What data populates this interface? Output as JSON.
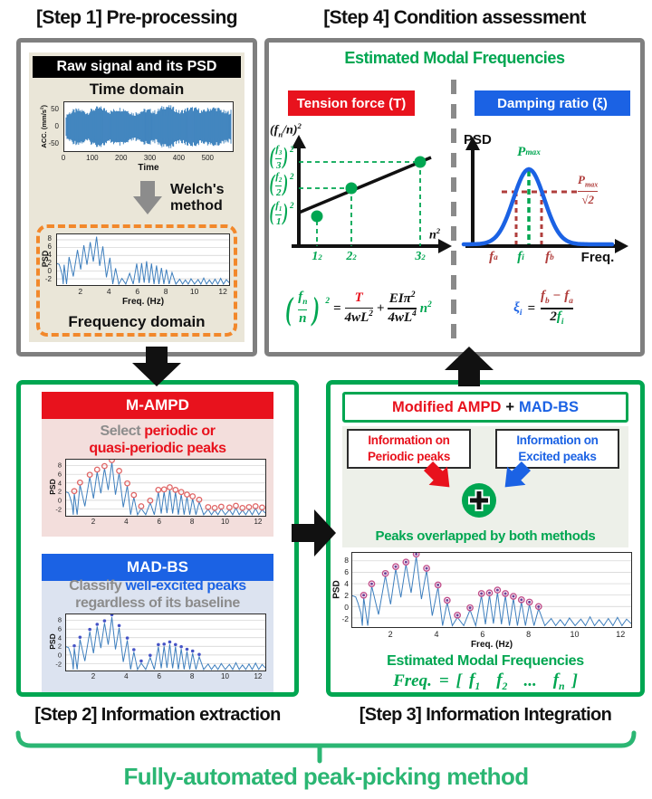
{
  "titles": {
    "step1": "[Step 1] Pre-processing",
    "step2": "[Step 2] Information extraction",
    "step3": "[Step 3] Information Integration",
    "step4": "[Step 4] Condition assessment"
  },
  "footer": "Fully-automated peak-picking method",
  "step1": {
    "raw_header": "Raw signal and its PSD",
    "time_domain": "Time domain",
    "time_plot": {
      "ylabel": "ACC. (mm/s^2)",
      "yticks": [
        "50",
        "0",
        "-50"
      ],
      "xticks": [
        "0",
        "100",
        "200",
        "300",
        "400",
        "500"
      ],
      "xlabel": "Time"
    },
    "welch_line1": "Welch's",
    "welch_line2": "method",
    "freq_plot": {
      "ylabel": "PSD",
      "yticks": [
        "8",
        "6",
        "4",
        "2",
        "0",
        "-2"
      ],
      "xticks": [
        "2",
        "4",
        "6",
        "8",
        "10",
        "12"
      ],
      "xlabel": "Freq. (Hz)"
    },
    "frequency_domain": "Frequency domain"
  },
  "step2": {
    "mampd": {
      "header": "M-AMPD",
      "desc_prefix": "Select",
      "desc_highlight_1": "periodic or",
      "desc_highlight_2": "quasi-periodic peaks",
      "plot": {
        "ylabel": "PSD",
        "yticks": [
          "8",
          "6",
          "4",
          "2",
          "0",
          "-2"
        ],
        "xticks": [
          "2",
          "4",
          "6",
          "8",
          "10",
          "12"
        ]
      }
    },
    "madbs": {
      "header": "MAD-BS",
      "desc_prefix": "Classify",
      "desc_highlight": "well-excited peaks",
      "desc_suffix": "regardless of its baseline",
      "plot": {
        "ylabel": "PSD",
        "yticks": [
          "8",
          "6",
          "4",
          "2",
          "0",
          "-2"
        ],
        "xticks": [
          "2",
          "4",
          "6",
          "8",
          "10",
          "12"
        ]
      }
    }
  },
  "step3": {
    "header_red": "Modified AMPD",
    "header_plus": "+",
    "header_blue": "MAD-BS",
    "info_left_1": "Information on",
    "info_left_2": "Periodic peaks",
    "info_right_1": "Information on",
    "info_right_2": "Excited peaks",
    "overlap": "Peaks overlapped by both methods",
    "plot": {
      "ylabel": "PSD",
      "yticks": [
        "8",
        "6",
        "4",
        "2",
        "0",
        "-2"
      ],
      "xticks": [
        "2",
        "4",
        "6",
        "8",
        "10",
        "12"
      ],
      "xlabel": "Freq. (Hz)"
    },
    "emf": "Estimated Modal Frequencies",
    "freq_formula": {
      "lhs": "Freq.",
      "eq": "=",
      "open": "[",
      "f1": "f_1",
      "f2": "f_2",
      "dots": "...",
      "fn": "f_n",
      "close": "]"
    }
  },
  "step4": {
    "emf": "Estimated Modal Frequencies",
    "tension": {
      "label": "Tension force (T)",
      "ylabel": "(f_n/n)^2",
      "yticks": [
        {
          "num": "f_3",
          "den": "3"
        },
        {
          "num": "f_2",
          "den": "2"
        },
        {
          "num": "f_1",
          "den": "1"
        }
      ],
      "tick_exp": "2",
      "xticks": [
        "1^2",
        "2^2",
        "3^2"
      ],
      "xlabel": "n^2",
      "formula": {
        "lhs_num": "f_n",
        "lhs_den": "n",
        "lhs_exp": "2",
        "eq": "=",
        "t1_num": "T",
        "t1_den": "4wL^2",
        "plus": "+",
        "t2_num": "EIπ^2",
        "t2_den": "4wL^4",
        "n2": "n^2"
      }
    },
    "damping": {
      "label": "Damping ratio (ξ)",
      "ylabel": "PSD",
      "pmax": "P_max",
      "half_num": "P_max",
      "half_den": "√2",
      "xtick_a": "f_a",
      "xtick_i": "f_i",
      "xtick_b": "f_b",
      "xlabel": "Freq.",
      "formula": {
        "lhs": "ξ_i",
        "eq": "=",
        "num": "f_b − f_a",
        "den_coef": "2",
        "den_f": "f_i"
      }
    }
  },
  "plots": {
    "lead_in": [
      [
        0.3,
        1.9
      ],
      [
        0.45,
        1.7
      ],
      [
        0.55,
        0.6
      ],
      [
        0.68,
        -1.2
      ]
    ],
    "peaks": [
      [
        0.8,
        1.6
      ],
      [
        1.15,
        3.6
      ],
      [
        1.75,
        5.4
      ],
      [
        2.2,
        6.6
      ],
      [
        2.65,
        7.4
      ],
      [
        3.1,
        8.8
      ],
      [
        3.55,
        6.3
      ],
      [
        4.05,
        3.4
      ],
      [
        4.45,
        0.7
      ],
      [
        4.9,
        -1.9
      ],
      [
        5.45,
        -0.6
      ],
      [
        5.95,
        1.9
      ],
      [
        6.3,
        2.0
      ],
      [
        6.65,
        2.5
      ],
      [
        7.0,
        1.9
      ],
      [
        7.35,
        1.4
      ],
      [
        7.7,
        0.8
      ],
      [
        8.05,
        0.4
      ],
      [
        8.45,
        -0.4
      ],
      [
        9.0,
        -2.1
      ],
      [
        9.4,
        -2.3
      ],
      [
        9.8,
        -2.0
      ],
      [
        10.3,
        -2.2
      ],
      [
        10.7,
        -1.8
      ],
      [
        11.1,
        -2.3
      ],
      [
        11.5,
        -2.1
      ],
      [
        11.9,
        -1.9
      ],
      [
        12.3,
        -2.2
      ]
    ],
    "marker_cutoff_all": 12.6,
    "marker_cutoff_overlap": 8.6
  },
  "colors": {
    "green": "#00A651",
    "red": "#E8121D",
    "blue": "#1B62E4",
    "dark_red": "#B03E3C",
    "orange": "#F2882B",
    "gray_border": "#7F7F7F",
    "footer_green": "#2BB673",
    "plot_line": "#3D7EBD",
    "beige": "#EAE6D8",
    "pink_panel": "#F3DEDC",
    "blue_panel": "#DCE3F0",
    "s3_panel": "#EDF0E9",
    "marker_ring": "#E06565",
    "marker_dot": "#4553C6",
    "marker_ring2": "#C2508C",
    "marker_dot2": "#6E3E96"
  }
}
